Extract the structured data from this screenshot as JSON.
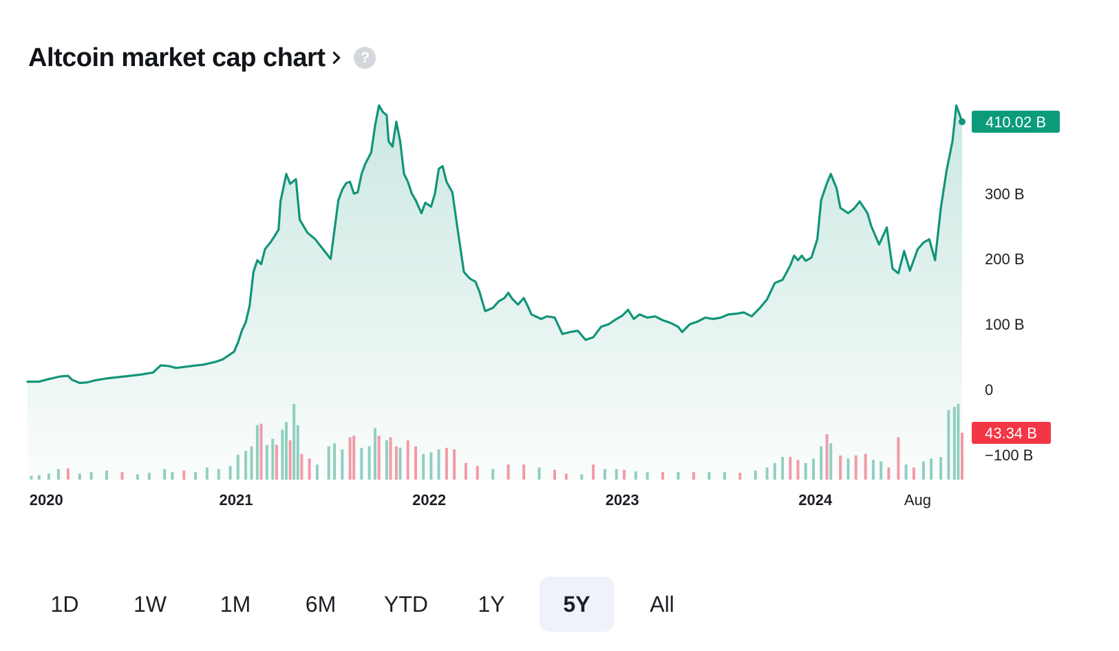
{
  "header": {
    "title": "Altcoin market cap chart",
    "help_glyph": "?"
  },
  "range_selector": {
    "options": [
      "1D",
      "1W",
      "1M",
      "6M",
      "YTD",
      "1Y",
      "5Y",
      "All"
    ],
    "active": "5Y"
  },
  "colors": {
    "line": "#119479",
    "up": "#90cfbf",
    "down": "#f39aa6",
    "price_tag": "#0b9b7b",
    "volume_tag": "#f23645"
  },
  "chart_data": {
    "type": "area",
    "title": "Altcoin market cap chart",
    "yaxis": {
      "min": -140,
      "max": 460,
      "ticks": [
        410,
        300,
        200,
        100,
        0,
        -100
      ],
      "tick_labels": [
        "",
        "300 B",
        "200 B",
        "100 B",
        "0",
        "−100 B"
      ]
    },
    "xaxis": {
      "labels": [
        "2020",
        "2021",
        "2022",
        "2023",
        "2024",
        "Aug"
      ],
      "label_x": [
        2020.0,
        2021.07,
        2022.07,
        2023.07,
        2024.07,
        2024.6
      ]
    },
    "last_price_label": "410.02 B",
    "last_volume_label": "43.34 B",
    "series": [
      {
        "type": "line",
        "points": [
          [
            2019.99,
            12
          ],
          [
            2020.05,
            12
          ],
          [
            2020.1,
            16
          ],
          [
            2020.16,
            20
          ],
          [
            2020.2,
            21
          ],
          [
            2020.22,
            15
          ],
          [
            2020.26,
            10
          ],
          [
            2020.3,
            11
          ],
          [
            2020.34,
            14
          ],
          [
            2020.4,
            17
          ],
          [
            2020.46,
            19
          ],
          [
            2020.52,
            21
          ],
          [
            2020.58,
            23
          ],
          [
            2020.64,
            26
          ],
          [
            2020.68,
            37
          ],
          [
            2020.72,
            36
          ],
          [
            2020.76,
            33
          ],
          [
            2020.84,
            36
          ],
          [
            2020.9,
            38
          ],
          [
            2020.96,
            42
          ],
          [
            2021.0,
            46
          ],
          [
            2021.03,
            52
          ],
          [
            2021.06,
            58
          ],
          [
            2021.08,
            72
          ],
          [
            2021.1,
            90
          ],
          [
            2021.12,
            103
          ],
          [
            2021.14,
            128
          ],
          [
            2021.16,
            180
          ],
          [
            2021.18,
            198
          ],
          [
            2021.2,
            192
          ],
          [
            2021.22,
            215
          ],
          [
            2021.25,
            226
          ],
          [
            2021.27,
            235
          ],
          [
            2021.29,
            245
          ],
          [
            2021.3,
            288
          ],
          [
            2021.33,
            330
          ],
          [
            2021.35,
            315
          ],
          [
            2021.38,
            322
          ],
          [
            2021.4,
            260
          ],
          [
            2021.44,
            240
          ],
          [
            2021.48,
            230
          ],
          [
            2021.52,
            215
          ],
          [
            2021.56,
            200
          ],
          [
            2021.6,
            290
          ],
          [
            2021.62,
            306
          ],
          [
            2021.64,
            316
          ],
          [
            2021.66,
            318
          ],
          [
            2021.68,
            300
          ],
          [
            2021.7,
            302
          ],
          [
            2021.72,
            330
          ],
          [
            2021.74,
            346
          ],
          [
            2021.77,
            363
          ],
          [
            2021.79,
            404
          ],
          [
            2021.81,
            435
          ],
          [
            2021.83,
            425
          ],
          [
            2021.85,
            420
          ],
          [
            2021.86,
            380
          ],
          [
            2021.88,
            372
          ],
          [
            2021.9,
            410
          ],
          [
            2021.92,
            380
          ],
          [
            2021.94,
            330
          ],
          [
            2021.96,
            318
          ],
          [
            2021.98,
            300
          ],
          [
            2022.0,
            290
          ],
          [
            2022.03,
            270
          ],
          [
            2022.05,
            286
          ],
          [
            2022.08,
            280
          ],
          [
            2022.1,
            300
          ],
          [
            2022.12,
            338
          ],
          [
            2022.14,
            342
          ],
          [
            2022.16,
            318
          ],
          [
            2022.19,
            302
          ],
          [
            2022.22,
            240
          ],
          [
            2022.25,
            180
          ],
          [
            2022.28,
            170
          ],
          [
            2022.31,
            165
          ],
          [
            2022.33,
            150
          ],
          [
            2022.36,
            120
          ],
          [
            2022.4,
            125
          ],
          [
            2022.43,
            135
          ],
          [
            2022.46,
            140
          ],
          [
            2022.48,
            148
          ],
          [
            2022.5,
            139
          ],
          [
            2022.53,
            130
          ],
          [
            2022.56,
            140
          ],
          [
            2022.58,
            128
          ],
          [
            2022.6,
            115
          ],
          [
            2022.65,
            108
          ],
          [
            2022.68,
            112
          ],
          [
            2022.72,
            110
          ],
          [
            2022.76,
            85
          ],
          [
            2022.8,
            88
          ],
          [
            2022.84,
            90
          ],
          [
            2022.88,
            76
          ],
          [
            2022.92,
            80
          ],
          [
            2022.96,
            96
          ],
          [
            2023.0,
            100
          ],
          [
            2023.04,
            108
          ],
          [
            2023.07,
            113
          ],
          [
            2023.1,
            122
          ],
          [
            2023.13,
            108
          ],
          [
            2023.16,
            115
          ],
          [
            2023.2,
            110
          ],
          [
            2023.24,
            112
          ],
          [
            2023.28,
            106
          ],
          [
            2023.32,
            102
          ],
          [
            2023.36,
            96
          ],
          [
            2023.38,
            88
          ],
          [
            2023.42,
            100
          ],
          [
            2023.46,
            104
          ],
          [
            2023.5,
            110
          ],
          [
            2023.54,
            108
          ],
          [
            2023.58,
            110
          ],
          [
            2023.62,
            115
          ],
          [
            2023.66,
            116
          ],
          [
            2023.7,
            118
          ],
          [
            2023.74,
            112
          ],
          [
            2023.78,
            124
          ],
          [
            2023.82,
            138
          ],
          [
            2023.86,
            163
          ],
          [
            2023.9,
            168
          ],
          [
            2023.94,
            190
          ],
          [
            2023.96,
            205
          ],
          [
            2023.98,
            198
          ],
          [
            2024.0,
            205
          ],
          [
            2024.02,
            197
          ],
          [
            2024.05,
            202
          ],
          [
            2024.08,
            230
          ],
          [
            2024.1,
            290
          ],
          [
            2024.13,
            316
          ],
          [
            2024.15,
            330
          ],
          [
            2024.18,
            308
          ],
          [
            2024.2,
            278
          ],
          [
            2024.24,
            270
          ],
          [
            2024.27,
            277
          ],
          [
            2024.3,
            288
          ],
          [
            2024.34,
            270
          ],
          [
            2024.36,
            250
          ],
          [
            2024.4,
            222
          ],
          [
            2024.44,
            248
          ],
          [
            2024.47,
            185
          ],
          [
            2024.5,
            178
          ],
          [
            2024.53,
            212
          ],
          [
            2024.56,
            182
          ],
          [
            2024.6,
            215
          ],
          [
            2024.63,
            225
          ],
          [
            2024.66,
            230
          ],
          [
            2024.69,
            198
          ],
          [
            2024.72,
            278
          ],
          [
            2024.75,
            336
          ],
          [
            2024.78,
            380
          ],
          [
            2024.8,
            435
          ],
          [
            2024.83,
            410.02
          ]
        ]
      },
      {
        "type": "volume",
        "unit": "relative",
        "bars": [
          [
            2020.01,
            0.05,
            "u"
          ],
          [
            2020.05,
            0.06,
            "u"
          ],
          [
            2020.1,
            0.08,
            "u"
          ],
          [
            2020.15,
            0.14,
            "u"
          ],
          [
            2020.2,
            0.15,
            "d"
          ],
          [
            2020.26,
            0.08,
            "u"
          ],
          [
            2020.32,
            0.1,
            "u"
          ],
          [
            2020.4,
            0.12,
            "u"
          ],
          [
            2020.48,
            0.1,
            "d"
          ],
          [
            2020.56,
            0.07,
            "u"
          ],
          [
            2020.62,
            0.09,
            "u"
          ],
          [
            2020.7,
            0.14,
            "u"
          ],
          [
            2020.74,
            0.1,
            "u"
          ],
          [
            2020.8,
            0.12,
            "d"
          ],
          [
            2020.86,
            0.1,
            "u"
          ],
          [
            2020.92,
            0.16,
            "u"
          ],
          [
            2020.98,
            0.14,
            "u"
          ],
          [
            2021.04,
            0.18,
            "u"
          ],
          [
            2021.08,
            0.33,
            "u"
          ],
          [
            2021.12,
            0.38,
            "u"
          ],
          [
            2021.15,
            0.44,
            "u"
          ],
          [
            2021.18,
            0.72,
            "u"
          ],
          [
            2021.2,
            0.74,
            "d"
          ],
          [
            2021.23,
            0.46,
            "u"
          ],
          [
            2021.26,
            0.54,
            "u"
          ],
          [
            2021.28,
            0.46,
            "d"
          ],
          [
            2021.31,
            0.66,
            "u"
          ],
          [
            2021.33,
            0.76,
            "u"
          ],
          [
            2021.35,
            0.52,
            "d"
          ],
          [
            2021.37,
            1.0,
            "u"
          ],
          [
            2021.39,
            0.72,
            "u"
          ],
          [
            2021.41,
            0.34,
            "d"
          ],
          [
            2021.45,
            0.28,
            "d"
          ],
          [
            2021.49,
            0.2,
            "u"
          ],
          [
            2021.55,
            0.44,
            "u"
          ],
          [
            2021.58,
            0.48,
            "u"
          ],
          [
            2021.62,
            0.4,
            "u"
          ],
          [
            2021.66,
            0.56,
            "d"
          ],
          [
            2021.68,
            0.58,
            "d"
          ],
          [
            2021.72,
            0.42,
            "u"
          ],
          [
            2021.76,
            0.44,
            "u"
          ],
          [
            2021.79,
            0.68,
            "u"
          ],
          [
            2021.81,
            0.58,
            "d"
          ],
          [
            2021.85,
            0.52,
            "u"
          ],
          [
            2021.87,
            0.56,
            "d"
          ],
          [
            2021.9,
            0.44,
            "d"
          ],
          [
            2021.92,
            0.42,
            "u"
          ],
          [
            2021.96,
            0.52,
            "d"
          ],
          [
            2022.0,
            0.44,
            "d"
          ],
          [
            2022.04,
            0.34,
            "u"
          ],
          [
            2022.08,
            0.36,
            "u"
          ],
          [
            2022.12,
            0.4,
            "u"
          ],
          [
            2022.16,
            0.42,
            "d"
          ],
          [
            2022.2,
            0.4,
            "d"
          ],
          [
            2022.26,
            0.22,
            "d"
          ],
          [
            2022.32,
            0.18,
            "d"
          ],
          [
            2022.4,
            0.14,
            "u"
          ],
          [
            2022.48,
            0.2,
            "d"
          ],
          [
            2022.56,
            0.2,
            "d"
          ],
          [
            2022.64,
            0.16,
            "u"
          ],
          [
            2022.72,
            0.13,
            "d"
          ],
          [
            2022.78,
            0.08,
            "d"
          ],
          [
            2022.86,
            0.07,
            "u"
          ],
          [
            2022.92,
            0.2,
            "d"
          ],
          [
            2022.98,
            0.14,
            "u"
          ],
          [
            2023.04,
            0.14,
            "u"
          ],
          [
            2023.08,
            0.13,
            "d"
          ],
          [
            2023.14,
            0.11,
            "u"
          ],
          [
            2023.2,
            0.1,
            "u"
          ],
          [
            2023.28,
            0.1,
            "d"
          ],
          [
            2023.36,
            0.1,
            "u"
          ],
          [
            2023.44,
            0.1,
            "d"
          ],
          [
            2023.52,
            0.1,
            "u"
          ],
          [
            2023.6,
            0.1,
            "u"
          ],
          [
            2023.68,
            0.09,
            "d"
          ],
          [
            2023.76,
            0.12,
            "u"
          ],
          [
            2023.82,
            0.16,
            "u"
          ],
          [
            2023.86,
            0.22,
            "u"
          ],
          [
            2023.9,
            0.3,
            "u"
          ],
          [
            2023.94,
            0.3,
            "d"
          ],
          [
            2023.98,
            0.26,
            "d"
          ],
          [
            2024.02,
            0.22,
            "u"
          ],
          [
            2024.06,
            0.28,
            "u"
          ],
          [
            2024.1,
            0.44,
            "u"
          ],
          [
            2024.13,
            0.6,
            "d"
          ],
          [
            2024.15,
            0.48,
            "u"
          ],
          [
            2024.2,
            0.32,
            "d"
          ],
          [
            2024.24,
            0.28,
            "u"
          ],
          [
            2024.28,
            0.32,
            "d"
          ],
          [
            2024.33,
            0.34,
            "d"
          ],
          [
            2024.37,
            0.26,
            "u"
          ],
          [
            2024.41,
            0.24,
            "u"
          ],
          [
            2024.45,
            0.16,
            "d"
          ],
          [
            2024.5,
            0.56,
            "d"
          ],
          [
            2024.54,
            0.2,
            "u"
          ],
          [
            2024.58,
            0.16,
            "d"
          ],
          [
            2024.63,
            0.24,
            "u"
          ],
          [
            2024.67,
            0.28,
            "u"
          ],
          [
            2024.72,
            0.3,
            "u"
          ],
          [
            2024.76,
            0.92,
            "u"
          ],
          [
            2024.79,
            0.96,
            "u"
          ],
          [
            2024.81,
            1.0,
            "u"
          ],
          [
            2024.83,
            0.62,
            "d"
          ]
        ]
      }
    ]
  }
}
